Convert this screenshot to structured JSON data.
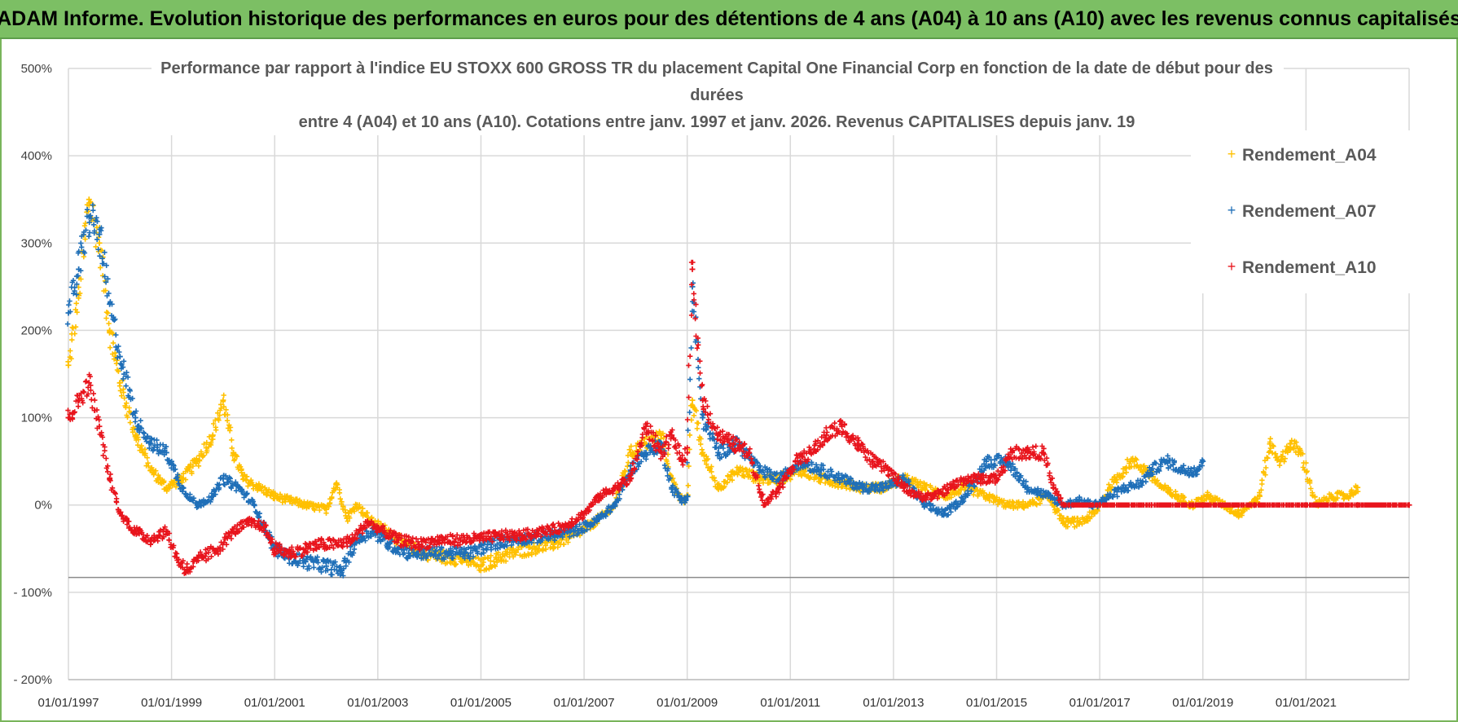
{
  "banner": {
    "title": "ADAM Informe. Evolution historique des performances en euros pour des détentions de 4 ans (A04) à 10 ans (A10) avec les revenus connus capitalisés"
  },
  "colors": {
    "A04": "#ffc000",
    "A07": "#1f6fb8",
    "A10": "#e8141c",
    "banner": "#7cbf64"
  },
  "chart_data": {
    "type": "scatter",
    "title_lines": [
      "Performance par rapport à l'indice EU STOXX 600 GROSS TR  du placement Capital One Financial Corp en fonction de la date de début pour des",
      "durées",
      "entre 4 (A04) et 10 ans (A10).  Cotations entre janv. 1997 et janv. 2026. Revenus CAPITALISES depuis janv. 19"
    ],
    "y_ticks": [
      "500%",
      "400%",
      "300%",
      "200%",
      "100%",
      "0%",
      "- 100%",
      "- 200%"
    ],
    "y_tick_values": [
      500,
      400,
      300,
      200,
      100,
      0,
      -100,
      -200
    ],
    "ylim": [
      -200,
      500
    ],
    "x_ticks": [
      "01/01/1997",
      "01/01/1999",
      "01/01/2001",
      "01/01/2003",
      "01/01/2005",
      "01/01/2007",
      "01/01/2009",
      "01/01/2011",
      "01/01/2013",
      "01/01/2015",
      "01/01/2017",
      "01/01/2019",
      "01/01/2021"
    ],
    "x_tick_values": [
      1997,
      1999,
      2001,
      2003,
      2005,
      2007,
      2009,
      2011,
      2013,
      2015,
      2017,
      2019,
      2021
    ],
    "xlim": [
      1997,
      2023
    ],
    "reference_line": -83,
    "legend": [
      "Rendement_A04",
      "Rendement_A07",
      "Rendement_A10"
    ],
    "series": [
      {
        "name": "Rendement_A04",
        "x": [
          1997.0,
          1997.2,
          1997.4,
          1997.6,
          1997.8,
          1998.0,
          1998.3,
          1998.6,
          1998.9,
          1999.2,
          1999.5,
          1999.8,
          2000.0,
          2000.2,
          2000.4,
          2000.7,
          2001.0,
          2001.3,
          2001.6,
          2002.0,
          2002.2,
          2002.4,
          2002.6,
          2002.9,
          2003.2,
          2003.5,
          2003.9,
          2004.3,
          2004.7,
          2005.0,
          2005.3,
          2005.6,
          2006.0,
          2006.4,
          2006.8,
          2007.2,
          2007.6,
          2007.9,
          2008.2,
          2008.5,
          2008.7,
          2008.9,
          2009.0,
          2009.1,
          2009.3,
          2009.6,
          2010.0,
          2010.4,
          2010.8,
          2011.2,
          2011.6,
          2012.0,
          2012.4,
          2012.8,
          2013.2,
          2013.6,
          2014.0,
          2014.4,
          2014.8,
          2015.2,
          2015.6,
          2016.0,
          2016.3,
          2016.6,
          2016.9,
          2017.2,
          2017.6,
          2017.9,
          2018.2,
          2018.5,
          2018.8,
          2019.1,
          2019.4,
          2019.7,
          2019.9,
          2020.1,
          2020.3,
          2020.5,
          2020.7,
          2020.9,
          2021.2,
          2021.5,
          2021.8,
          2022.0
        ],
        "values": [
          160,
          240,
          350,
          300,
          200,
          140,
          80,
          40,
          20,
          30,
          50,
          80,
          120,
          60,
          30,
          20,
          10,
          5,
          0,
          -5,
          25,
          -15,
          0,
          -20,
          -30,
          -45,
          -55,
          -60,
          -62,
          -70,
          -62,
          -55,
          -50,
          -45,
          -35,
          -20,
          0,
          60,
          70,
          80,
          30,
          5,
          10,
          120,
          60,
          20,
          40,
          30,
          30,
          40,
          30,
          25,
          20,
          20,
          30,
          20,
          10,
          20,
          10,
          0,
          0,
          10,
          -20,
          -20,
          -10,
          20,
          50,
          40,
          20,
          10,
          0,
          10,
          0,
          -10,
          0,
          10,
          70,
          50,
          70,
          60,
          0,
          10,
          10,
          20
        ]
      },
      {
        "name": "Rendement_A07",
        "x": [
          1997.0,
          1997.2,
          1997.4,
          1997.6,
          1997.8,
          1998.0,
          1998.3,
          1998.6,
          1998.9,
          1999.2,
          1999.5,
          1999.8,
          2000.0,
          2000.3,
          2000.6,
          2001.0,
          2001.3,
          2001.6,
          2002.0,
          2002.3,
          2002.6,
          2002.9,
          2003.2,
          2003.6,
          2004.0,
          2004.4,
          2004.8,
          2005.2,
          2005.6,
          2006.0,
          2006.4,
          2006.8,
          2007.2,
          2007.6,
          2007.9,
          2008.2,
          2008.5,
          2008.7,
          2008.9,
          2009.0,
          2009.1,
          2009.3,
          2009.6,
          2010.0,
          2010.4,
          2010.8,
          2011.2,
          2011.6,
          2012.0,
          2012.4,
          2012.8,
          2013.2,
          2013.6,
          2014.0,
          2014.4,
          2014.8,
          2015.2,
          2015.6,
          2016.0,
          2016.3,
          2016.6,
          2016.9,
          2017.2,
          2017.5,
          2017.8,
          2018.0,
          2018.3,
          2018.6,
          2018.9,
          2019.0
        ],
        "values": [
          220,
          270,
          330,
          310,
          230,
          170,
          100,
          70,
          60,
          20,
          0,
          10,
          30,
          20,
          0,
          -50,
          -60,
          -65,
          -70,
          -75,
          -40,
          -30,
          -45,
          -55,
          -55,
          -55,
          -55,
          -45,
          -40,
          -38,
          -35,
          -30,
          -20,
          0,
          40,
          60,
          70,
          20,
          5,
          10,
          250,
          100,
          60,
          70,
          40,
          30,
          50,
          40,
          30,
          20,
          20,
          30,
          0,
          -10,
          10,
          50,
          50,
          20,
          10,
          0,
          5,
          0,
          10,
          20,
          25,
          40,
          50,
          40,
          40,
          50
        ]
      },
      {
        "name": "Rendement_A10",
        "x": [
          1997.0,
          1997.2,
          1997.4,
          1997.6,
          1997.8,
          1998.0,
          1998.3,
          1998.6,
          1998.9,
          1999.1,
          1999.3,
          1999.6,
          1999.9,
          2000.2,
          2000.5,
          2000.8,
          2001.0,
          2001.3,
          2001.6,
          2001.9,
          2002.2,
          2002.5,
          2002.8,
          2003.1,
          2003.4,
          2003.8,
          2004.2,
          2004.6,
          2005.0,
          2005.4,
          2005.8,
          2006.2,
          2006.6,
          2007.0,
          2007.3,
          2007.6,
          2007.9,
          2008.2,
          2008.5,
          2008.7,
          2008.9,
          2009.0,
          2009.1,
          2009.3,
          2009.6,
          2009.9,
          2010.2,
          2010.5,
          2010.8,
          2011.1,
          2011.4,
          2011.7,
          2012.0,
          2012.3,
          2012.6,
          2012.9,
          2013.2,
          2013.5,
          2013.8,
          2014.1,
          2014.4,
          2014.7,
          2015.0,
          2015.3,
          2015.6,
          2015.9,
          2016.1,
          2016.3,
          2017.0,
          2018.0,
          2019.0,
          2020.0,
          2021.0,
          2022.0,
          2023.0
        ],
        "values": [
          100,
          120,
          140,
          90,
          30,
          -10,
          -30,
          -40,
          -30,
          -60,
          -75,
          -60,
          -50,
          -30,
          -20,
          -25,
          -50,
          -55,
          -50,
          -45,
          -45,
          -40,
          -20,
          -30,
          -40,
          -45,
          -40,
          -40,
          -38,
          -35,
          -35,
          -30,
          -25,
          -10,
          10,
          20,
          30,
          90,
          60,
          80,
          50,
          60,
          270,
          120,
          80,
          70,
          60,
          0,
          20,
          50,
          60,
          80,
          90,
          70,
          50,
          40,
          20,
          10,
          10,
          20,
          30,
          30,
          30,
          60,
          60,
          60,
          20,
          0,
          0,
          0,
          0,
          0,
          0,
          0,
          0
        ]
      }
    ]
  }
}
